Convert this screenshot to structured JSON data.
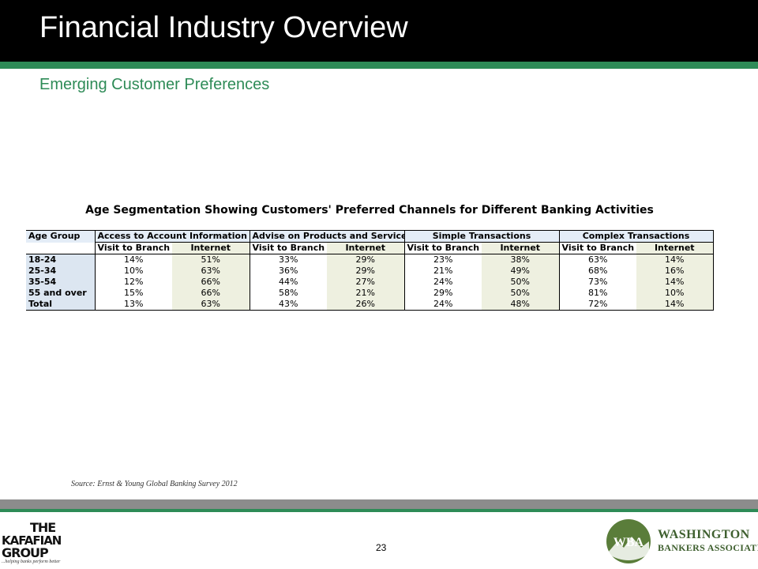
{
  "slide": {
    "title": "Financial Industry Overview",
    "subtitle": "Emerging Customer Preferences",
    "page_number": "23",
    "source": "Source: Ernst & Young Global Banking Survey 2012",
    "colors": {
      "header_bg": "#000000",
      "accent_green": "#2e8b57",
      "bottom_gray": "#8c8c8c"
    }
  },
  "table": {
    "title": "Age Segmentation Showing Customers' Preferred Channels for Different Banking Activities",
    "age_group_header": "Age Group",
    "groups": [
      "Access to Account Information",
      "Advise on Products and Services",
      "Simple Transactions",
      "Complex Transactions"
    ],
    "sub_headers": [
      "Visit to Branch",
      "Internet",
      "Visit to Branch",
      "Internet",
      "Visit to Branch",
      "Internet",
      "Visit to Branch",
      "Internet"
    ],
    "rows": [
      {
        "age": "18-24",
        "values": [
          "14%",
          "51%",
          "33%",
          "29%",
          "23%",
          "38%",
          "63%",
          "14%"
        ]
      },
      {
        "age": "25-34",
        "values": [
          "10%",
          "63%",
          "36%",
          "29%",
          "21%",
          "49%",
          "68%",
          "16%"
        ]
      },
      {
        "age": "35-54",
        "values": [
          "12%",
          "66%",
          "44%",
          "27%",
          "24%",
          "50%",
          "73%",
          "14%"
        ]
      },
      {
        "age": "55 and over",
        "values": [
          "15%",
          "66%",
          "58%",
          "21%",
          "29%",
          "50%",
          "81%",
          "10%"
        ]
      },
      {
        "age": "Total",
        "values": [
          "13%",
          "63%",
          "43%",
          "26%",
          "24%",
          "48%",
          "72%",
          "14%"
        ]
      }
    ]
  },
  "logos": {
    "kafafian": {
      "line1": "THE",
      "line2": "KAFAFIAN",
      "line3": "GROUP",
      "tagline": "...helping banks perform better"
    },
    "wba": {
      "mark": "WBA",
      "line1": "WASHINGTON",
      "line2": "BANKERS ASSOCIATION"
    }
  }
}
